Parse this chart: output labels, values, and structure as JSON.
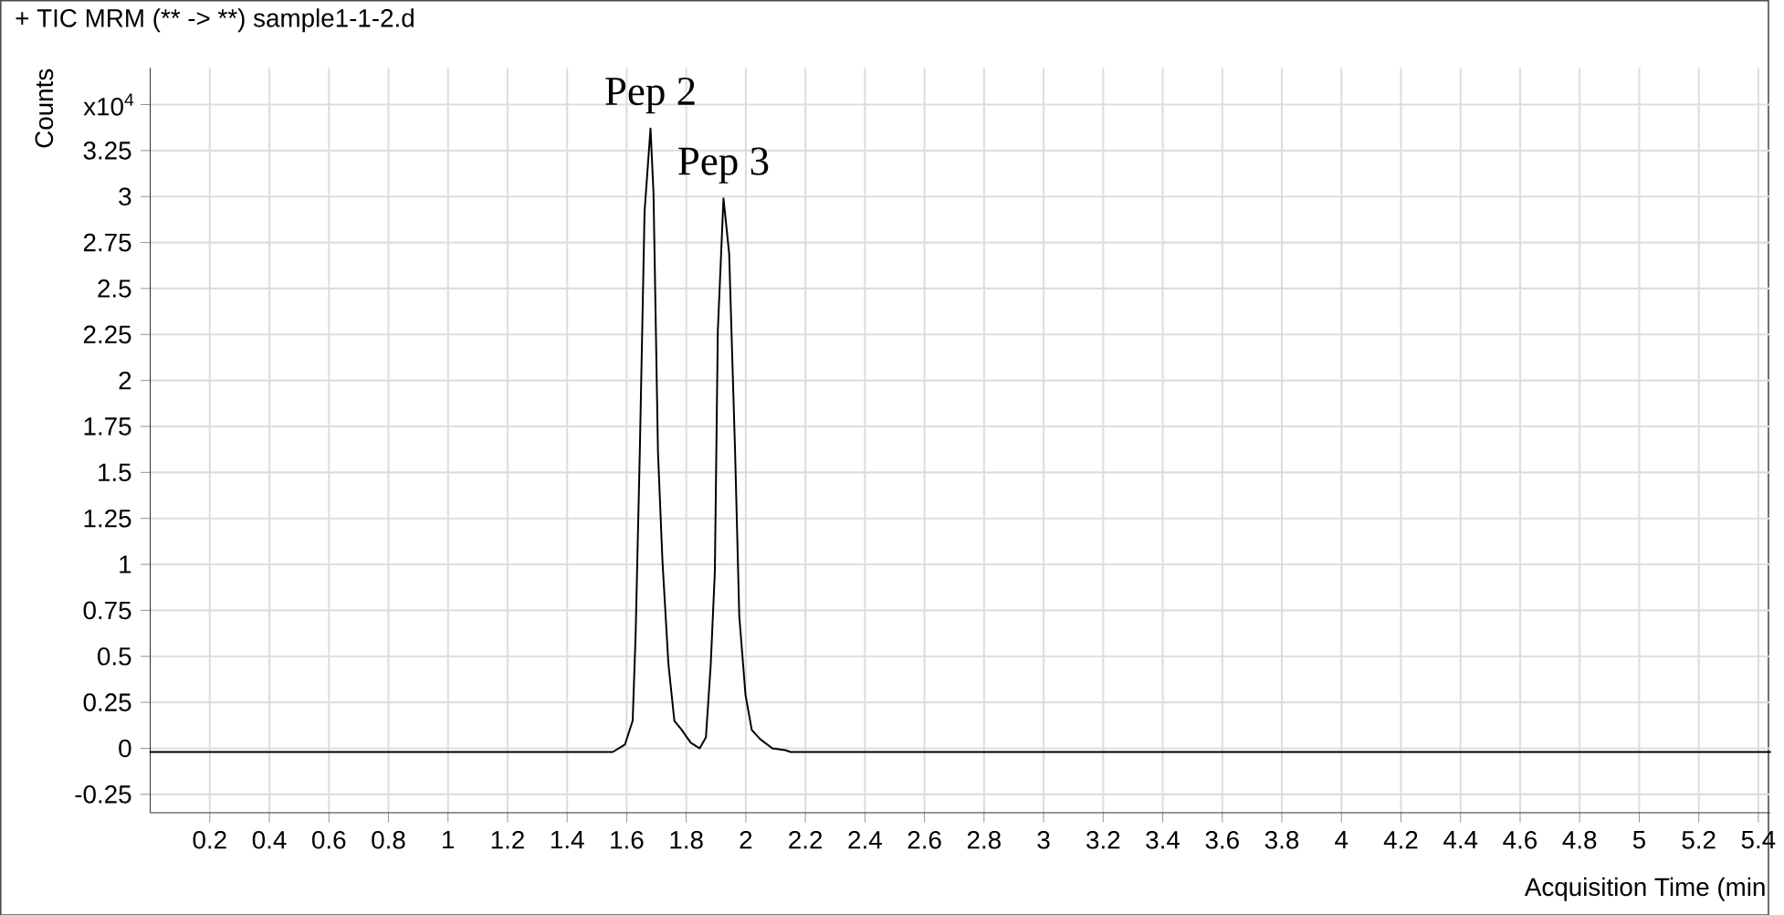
{
  "chart_data": {
    "type": "line",
    "title": "+ TIC MRM (** -> **) sample1-1-2.d",
    "xlabel": "Acquisition Time (min",
    "ylabel": "Counts",
    "annotations": [
      "x10$^{4}$",
      {
        "text": "Pep 2",
        "x": 1.68,
        "y": 3.37
      },
      {
        "text": "Pep 3",
        "x": 1.925,
        "y": 2.99
      }
    ],
    "series": [
      {
        "color": "#000000",
        "x": [
          0,
          1.2,
          1.553,
          1.594,
          1.62,
          1.63,
          1.644,
          1.66,
          1.68,
          1.69,
          1.705,
          1.72,
          1.74,
          1.76,
          1.785,
          1.815,
          1.845,
          1.866,
          1.882,
          1.896,
          1.906,
          1.925,
          1.944,
          1.964,
          1.978,
          1.999,
          2.02,
          2.048,
          2.089,
          2.133,
          2.15,
          5.44
        ],
        "values": [
          -0.02,
          -0.02,
          -0.02,
          0.02,
          0.15,
          0.62,
          1.61,
          2.92,
          3.37,
          3.02,
          1.61,
          1.02,
          0.46,
          0.15,
          0.1,
          0.03,
          0.0,
          0.06,
          0.45,
          0.96,
          2.27,
          2.99,
          2.69,
          1.61,
          0.72,
          0.29,
          0.1,
          0.05,
          0.0,
          -0.01,
          -0.02,
          -0.02
        ]
      }
    ],
    "xlim": [
      0,
      5.44
    ],
    "ylim": [
      -0.35,
      3.7
    ],
    "xticks": [
      0.2,
      0.4,
      0.6,
      0.8,
      1,
      1.2,
      1.4,
      1.6,
      1.8,
      2,
      2.2,
      2.4,
      2.6,
      2.8,
      3,
      3.2,
      3.4,
      3.6,
      3.8,
      4,
      4.2,
      4.4,
      4.6,
      4.8,
      5,
      5.2,
      5.4
    ],
    "yticks": [
      -0.25,
      0,
      0.25,
      0.5,
      0.75,
      1,
      1.25,
      1.5,
      1.75,
      2,
      2.25,
      2.5,
      2.75,
      3,
      3.25,
      {
        "value": 3.5,
        "label": null
      }
    ],
    "grid": true,
    "marker": "none",
    "line_style": "solid"
  }
}
